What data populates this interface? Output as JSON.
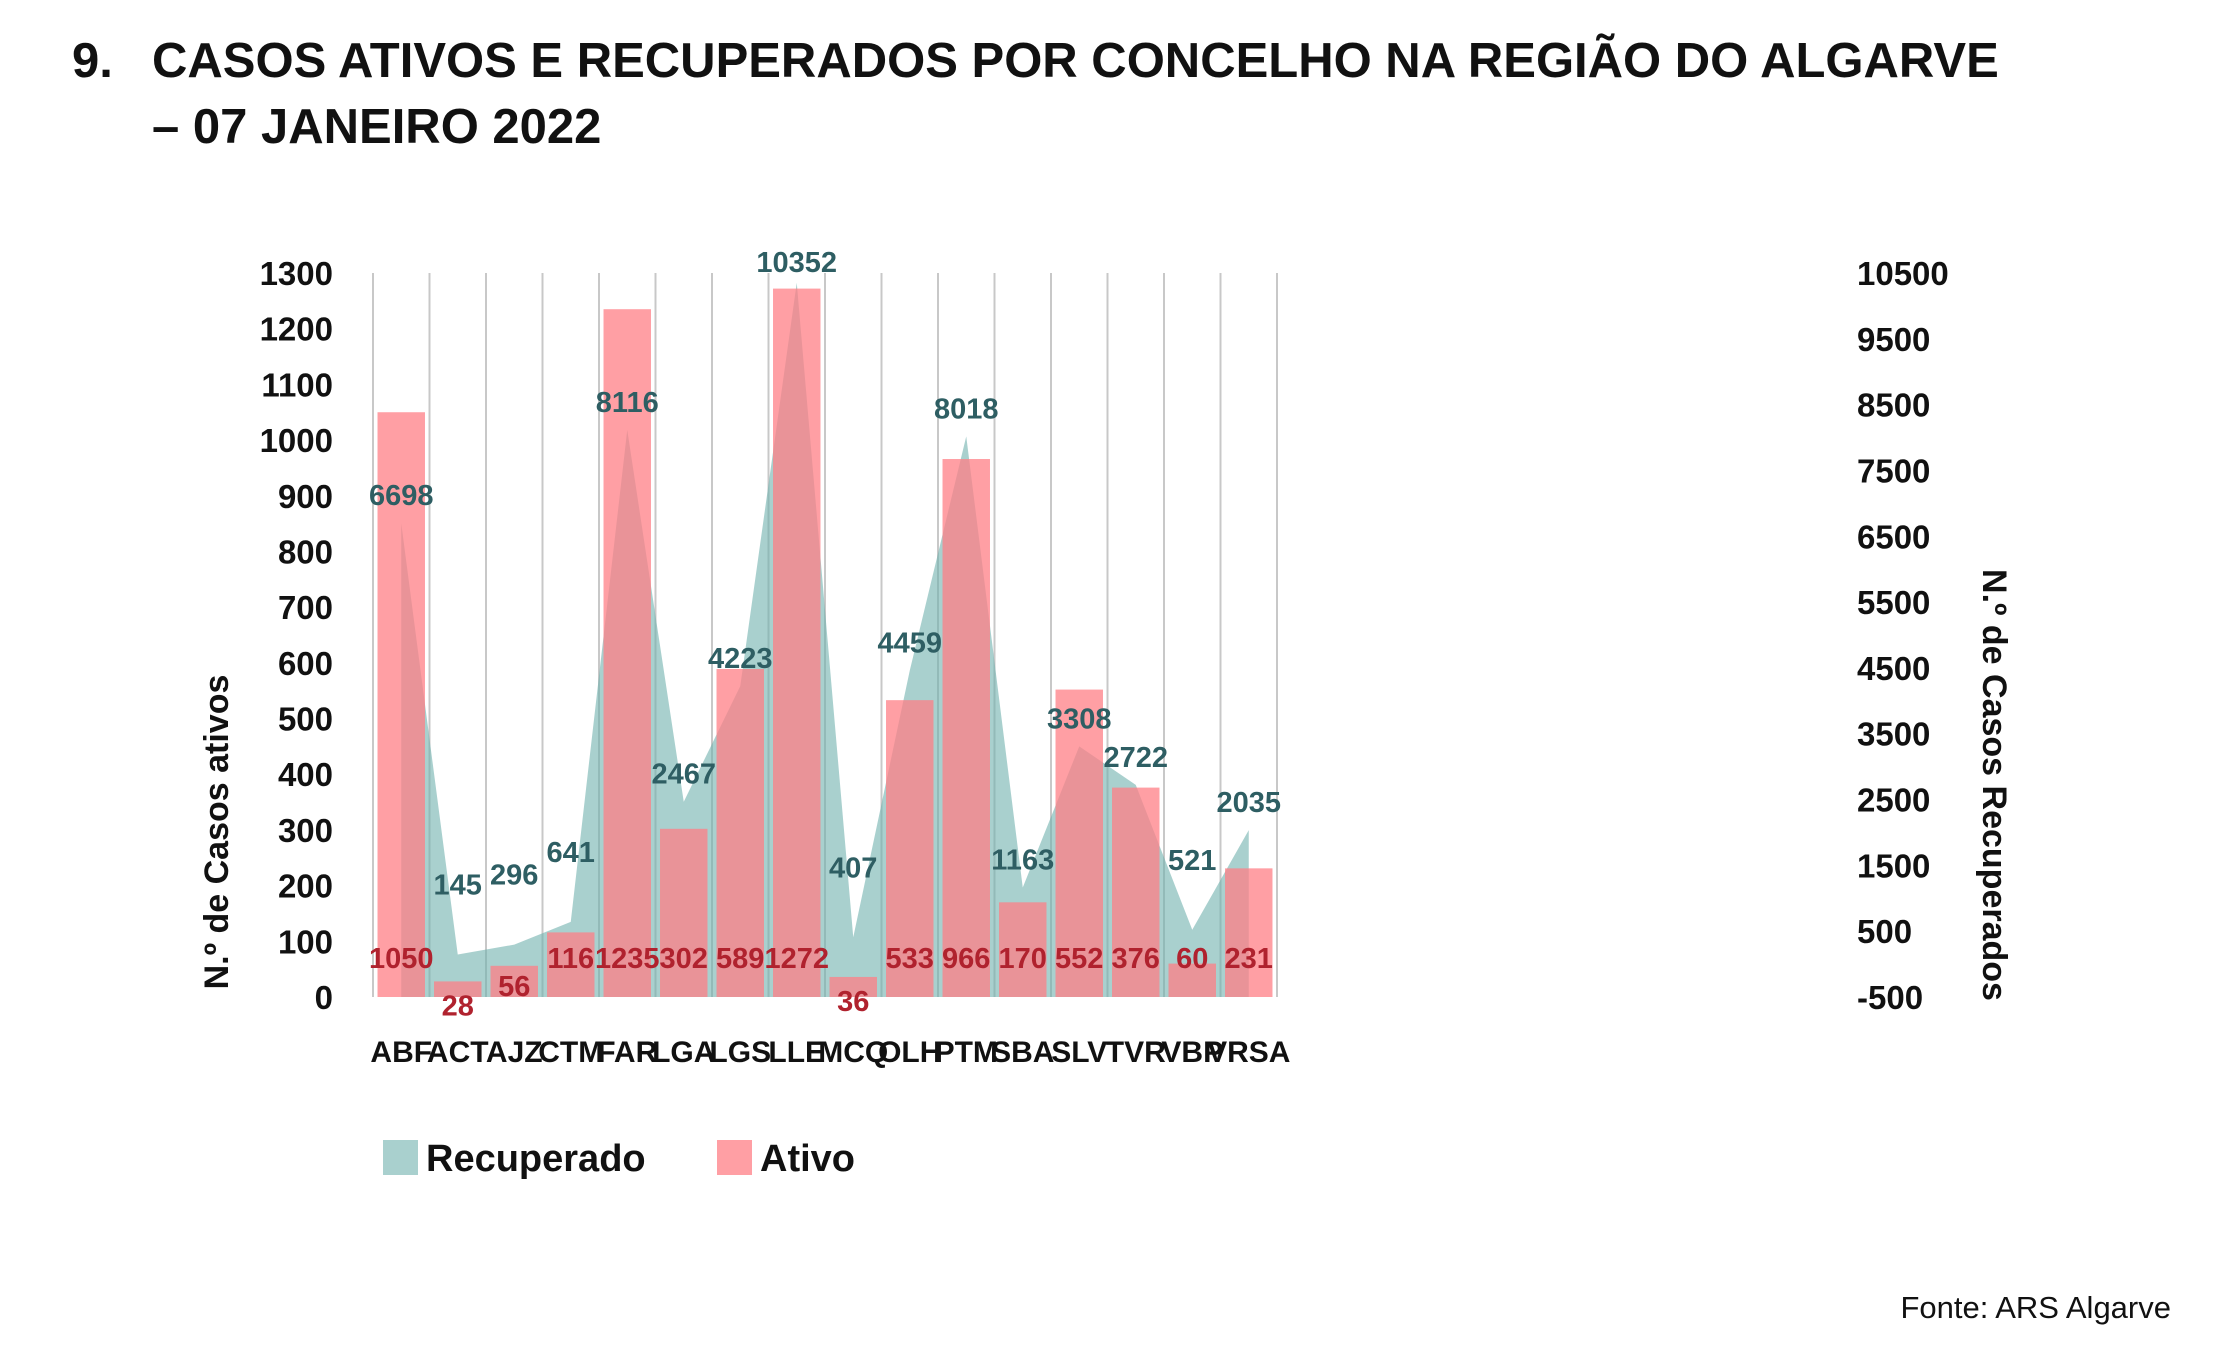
{
  "heading": {
    "number": "9.",
    "line1": "CASOS ATIVOS E RECUPERADOS POR CONCELHO NA REGIÃO DO ALGARVE",
    "line2": "– 07 JANEIRO 2022"
  },
  "source": "Fonte: ARS Algarve",
  "colors": {
    "ativo": "#ff7f86",
    "recuperado": "#6fb0ad",
    "grid": "#c8c8c8"
  },
  "chart_data": {
    "type": "bar",
    "title": "CASOS ATIVOS E RECUPERADOS POR CONCELHO NA REGIÃO DO ALGARVE – 07 JANEIRO 2022",
    "categories": [
      "ABF",
      "ACT",
      "AJZ",
      "CTM",
      "FAR",
      "LGA",
      "LGS",
      "LLE",
      "MCQ",
      "OLH",
      "PTM",
      "SBA",
      "SLV",
      "TVR",
      "VBP",
      "VRSA"
    ],
    "ylabel": "N.º de Casos ativos",
    "y2label": "N.º de Casos Recuperados",
    "ylim": [
      0,
      1300
    ],
    "y2lim": [
      -500,
      10500
    ],
    "yticks": [
      "0",
      "100",
      "200",
      "300",
      "400",
      "500",
      "600",
      "700",
      "800",
      "900",
      "1000",
      "1100",
      "1200",
      "1300"
    ],
    "y2ticks": [
      "-500",
      "500",
      "1500",
      "2500",
      "3500",
      "4500",
      "5500",
      "6500",
      "7500",
      "8500",
      "9500",
      "10500"
    ],
    "legend_position": "bottom-left",
    "series": [
      {
        "name": "Recuperado",
        "kind": "area",
        "axis": "right",
        "values": [
          6698,
          145,
          296,
          641,
          8116,
          2467,
          4223,
          10352,
          407,
          4459,
          8018,
          1163,
          3308,
          2722,
          521,
          2035
        ],
        "labels": [
          "6698",
          "145",
          "296",
          "641",
          "8116",
          "2467",
          "4223",
          "10352",
          "407",
          "4459",
          "8018",
          "1163",
          "3308",
          "2722",
          "521",
          "2035"
        ]
      },
      {
        "name": "Ativo",
        "kind": "bar",
        "axis": "left",
        "values": [
          1050,
          28,
          56,
          116,
          1235,
          302,
          589,
          1272,
          36,
          533,
          966,
          170,
          552,
          376,
          60,
          231
        ],
        "labels": [
          "1050",
          "28",
          "56",
          "116",
          "1235",
          "302",
          "589",
          "1272",
          "36",
          "533",
          "966",
          "170",
          "552",
          "376",
          "60",
          "231"
        ]
      }
    ]
  }
}
